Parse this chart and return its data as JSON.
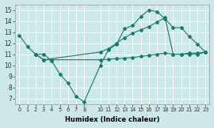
{
  "xlabel": "Humidex (Indice chaleur)",
  "bg_color": "#cde8e8",
  "grid_color": "#b8d8d8",
  "line_color": "#1a7a6e",
  "xlim": [
    -0.5,
    23.5
  ],
  "ylim": [
    6.5,
    15.5
  ],
  "xticks": [
    0,
    1,
    2,
    3,
    4,
    5,
    6,
    7,
    8,
    10,
    11,
    12,
    13,
    14,
    15,
    16,
    17,
    18,
    19,
    20,
    21,
    22,
    23
  ],
  "yticks": [
    7,
    8,
    9,
    10,
    11,
    12,
    13,
    14,
    15
  ],
  "line1_x": [
    0,
    1,
    2,
    3,
    4,
    5,
    6,
    7,
    8,
    10,
    11,
    12,
    13,
    14,
    15,
    16,
    17,
    18,
    19,
    20,
    21,
    22,
    23
  ],
  "line1_y": [
    12.7,
    11.7,
    11.0,
    11.0,
    10.4,
    9.2,
    8.4,
    7.2,
    6.7,
    10.0,
    11.4,
    11.9,
    13.3,
    13.6,
    14.4,
    15.0,
    14.85,
    14.2,
    13.4,
    13.4,
    12.6,
    11.9,
    11.2
  ],
  "line2_x": [
    2,
    3,
    10,
    11,
    12,
    13,
    14,
    15,
    16,
    17,
    18,
    19,
    20,
    21,
    22,
    23
  ],
  "line2_y": [
    11.0,
    10.5,
    11.2,
    11.5,
    12.0,
    12.5,
    12.9,
    13.2,
    13.5,
    13.9,
    14.3,
    11.0,
    11.0,
    11.1,
    11.1,
    11.2
  ],
  "line3_x": [
    2,
    3,
    4,
    10,
    11,
    12,
    13,
    14,
    15,
    16,
    17,
    18,
    19,
    20,
    21,
    22,
    23
  ],
  "line3_y": [
    11.0,
    10.5,
    10.5,
    10.5,
    10.55,
    10.6,
    10.65,
    10.7,
    10.8,
    10.9,
    11.0,
    11.1,
    11.0,
    11.0,
    11.0,
    11.0,
    11.2
  ]
}
